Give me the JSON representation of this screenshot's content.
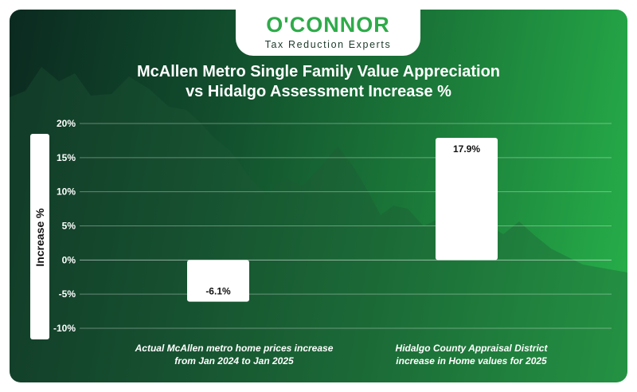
{
  "brand": {
    "name": "O'CONNOR",
    "tagline": "Tax Reduction Experts"
  },
  "colors": {
    "accent_green": "#2eab49",
    "bar_fill": "#ffffff",
    "grid": "#ffffff"
  },
  "chart_data": {
    "type": "bar",
    "title": "McAllen Metro Single Family Value Appreciation vs Hidalgo Assessment Increase %",
    "title_lines": [
      "McAllen Metro Single Family Value Appreciation",
      "vs Hidalgo Assessment Increase %"
    ],
    "ylabel": "Increase %",
    "ylim": [
      -10,
      20
    ],
    "yticks": [
      20,
      15,
      10,
      5,
      0,
      -5,
      -10
    ],
    "ytick_labels": [
      "20%",
      "15%",
      "10%",
      "5%",
      "0%",
      "-5%",
      "-10%"
    ],
    "grid": true,
    "categories": [
      "Actual McAllen metro home prices increase from Jan 2024 to Jan 2025",
      "Hidalgo County Appraisal District increase in Home values for 2025"
    ],
    "category_lines": [
      [
        "Actual McAllen metro home prices increase",
        "from Jan 2024 to Jan 2025"
      ],
      [
        "Hidalgo County Appraisal District",
        "increase in Home values for 2025"
      ]
    ],
    "values": [
      -6.1,
      17.9
    ],
    "value_labels": [
      "-6.1%",
      "17.9%"
    ]
  }
}
